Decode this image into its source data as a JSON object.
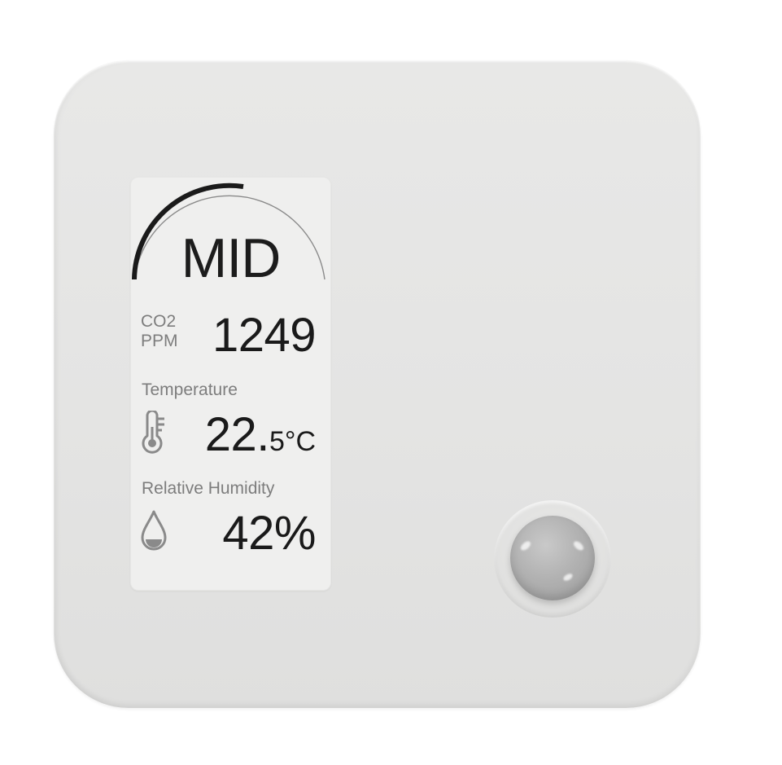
{
  "display": {
    "level_label": "MID",
    "level_fraction": 0.5,
    "co2": {
      "label_line1": "CO2",
      "label_line2": "PPM",
      "value": "1249"
    },
    "temperature": {
      "label": "Temperature",
      "value_integer": "22.",
      "value_fraction_unit": "5°C",
      "icon": "thermometer-icon"
    },
    "humidity": {
      "label": "Relative Humidity",
      "value": "42%",
      "icon": "water-drop-icon"
    }
  },
  "colors": {
    "device_body": "#e4e4e3",
    "screen": "#efefee",
    "text_primary": "#1a1a1a",
    "text_secondary": "#7d7d7d",
    "sensor_dome": "#b2b2b2"
  }
}
